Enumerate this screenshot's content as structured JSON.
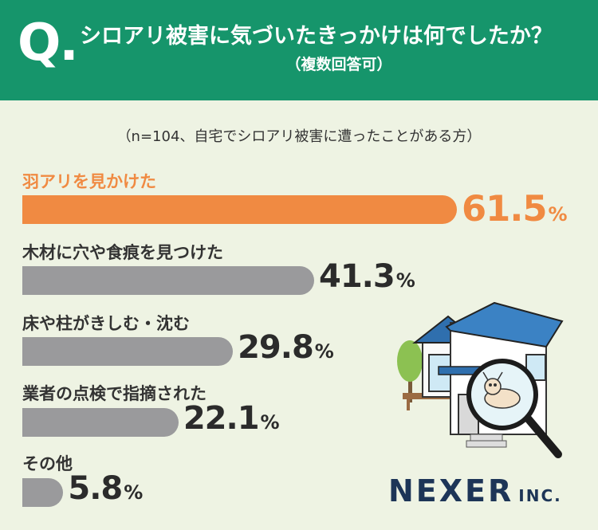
{
  "header": {
    "q_mark": "Q.",
    "title": "シロアリ被害に気づいたきっかけは何でしたか？",
    "subtitle": "（複数回答可）"
  },
  "note": "（n=104、自宅でシロアリ被害に遭ったことがある方）",
  "colors": {
    "header_bg": "#16956b",
    "highlight": "#f08a42",
    "bar": "#9a9a9c",
    "background": "#eef3e3"
  },
  "chart_data": {
    "type": "bar",
    "orientation": "horizontal",
    "categories": [
      "羽アリを見かけた",
      "木材に穴や食痕を見つけた",
      "床や柱がきしむ・沈む",
      "業者の点検で指摘された",
      "その他"
    ],
    "values": [
      61.5,
      41.3,
      29.8,
      22.1,
      5.8
    ],
    "value_labels": [
      "61.5",
      "41.3",
      "29.8",
      "22.1",
      "5.8"
    ],
    "unit": "%",
    "highlight_index": 0
  },
  "logo": {
    "main": "NEXER",
    "suffix": "INC."
  }
}
